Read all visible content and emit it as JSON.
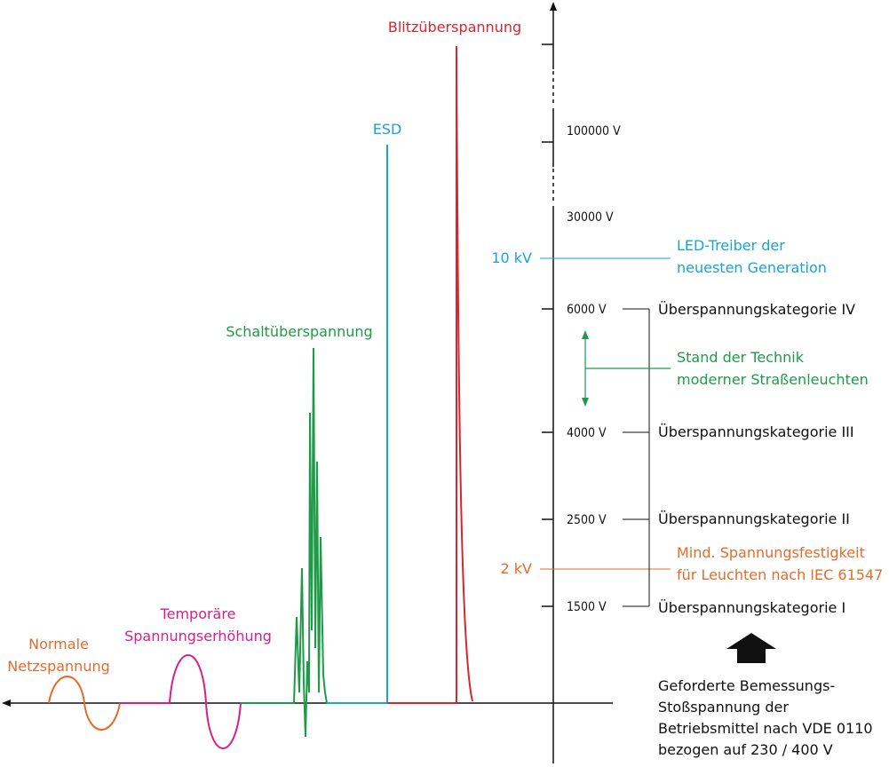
{
  "colors": {
    "normal": "#e36c2b",
    "temporary": "#d61f8c",
    "switching": "#1f9a48",
    "esd": "#1aa3d4",
    "lightning": "#d7262f",
    "axis": "#111111"
  },
  "waves": {
    "normal": "Normale\nNetzspannung",
    "temporary": "Temporäre\nSpannungserhöhung",
    "switching": "Schaltüberspannung",
    "esd": "ESD",
    "lightning": "Blitzüberspannung"
  },
  "axis_ticks": [
    "100000 V",
    "30000 V",
    "6000 V",
    "4000 V",
    "2500 V",
    "1500 V"
  ],
  "markers": {
    "led": {
      "level": "10 kV",
      "text": "LED-Treiber der\nneuesten Generation"
    },
    "iec": {
      "level": "2 kV",
      "text": "Mind. Spannungsfestigkeit\nfür Leuchten nach IEC 61547"
    }
  },
  "categories": [
    "Überspannungskategorie IV",
    "Überspannungskategorie III",
    "Überspannungskategorie II",
    "Überspannungskategorie I"
  ],
  "state_of_art": "Stand der Technik\nmoderner Straßenleuchten",
  "footnote": "Geforderte Bemessungs-\nStoßspannung der\nBetriebsmittel nach VDE 0110\nbezogen auf 230 / 400 V",
  "icons": {
    "up_arrow": "up-arrow-icon"
  }
}
